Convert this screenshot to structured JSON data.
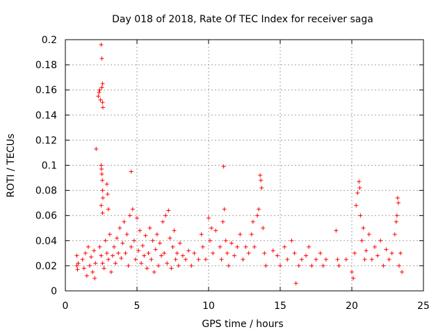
{
  "chart_data": {
    "type": "scatter",
    "title": "Day 018 of 2018, Rate Of TEC Index for receiver saga",
    "xlabel": "GPS time / hours",
    "ylabel": "ROTI / TECUs",
    "xlim": [
      0,
      25
    ],
    "ylim": [
      0,
      0.2
    ],
    "x_ticks": [
      "0",
      "5",
      "10",
      "15",
      "20",
      "25"
    ],
    "y_ticks": [
      "0",
      "0.02",
      "0.04",
      "0.06",
      "0.08",
      "0.1",
      "0.12",
      "0.14",
      "0.16",
      "0.18",
      "0.2"
    ],
    "grid": true,
    "marker": "+",
    "color": "#ff0000",
    "series": [
      {
        "name": "ROTI",
        "points": [
          [
            0.8,
            0.028
          ],
          [
            0.8,
            0.02
          ],
          [
            0.85,
            0.017
          ],
          [
            0.9,
            0.022
          ],
          [
            1.2,
            0.025
          ],
          [
            1.3,
            0.018
          ],
          [
            1.4,
            0.03
          ],
          [
            1.5,
            0.012
          ],
          [
            1.6,
            0.035
          ],
          [
            1.7,
            0.02
          ],
          [
            1.8,
            0.027
          ],
          [
            1.9,
            0.015
          ],
          [
            2.0,
            0.032
          ],
          [
            2.05,
            0.01
          ],
          [
            2.1,
            0.022
          ],
          [
            2.15,
            0.113
          ],
          [
            2.3,
            0.155
          ],
          [
            2.35,
            0.158
          ],
          [
            2.4,
            0.16
          ],
          [
            2.45,
            0.152
          ],
          [
            2.5,
            0.196
          ],
          [
            2.55,
            0.185
          ],
          [
            2.6,
            0.165
          ],
          [
            2.6,
            0.15
          ],
          [
            2.62,
            0.146
          ],
          [
            2.55,
            0.162
          ],
          [
            2.5,
            0.1
          ],
          [
            2.52,
            0.097
          ],
          [
            2.55,
            0.093
          ],
          [
            2.58,
            0.088
          ],
          [
            2.6,
            0.08
          ],
          [
            2.62,
            0.074
          ],
          [
            2.5,
            0.068
          ],
          [
            2.6,
            0.062
          ],
          [
            2.9,
            0.085
          ],
          [
            2.95,
            0.077
          ],
          [
            3.0,
            0.065
          ],
          [
            2.4,
            0.035
          ],
          [
            2.5,
            0.028
          ],
          [
            2.6,
            0.022
          ],
          [
            2.7,
            0.018
          ],
          [
            2.8,
            0.04
          ],
          [
            2.9,
            0.03
          ],
          [
            3.0,
            0.025
          ],
          [
            3.1,
            0.045
          ],
          [
            3.2,
            0.015
          ],
          [
            3.3,
            0.028
          ],
          [
            3.4,
            0.035
          ],
          [
            3.5,
            0.022
          ],
          [
            3.6,
            0.042
          ],
          [
            3.7,
            0.03
          ],
          [
            3.8,
            0.05
          ],
          [
            3.9,
            0.026
          ],
          [
            4.0,
            0.038
          ],
          [
            4.1,
            0.055
          ],
          [
            4.2,
            0.03
          ],
          [
            4.3,
            0.045
          ],
          [
            4.4,
            0.02
          ],
          [
            4.5,
            0.06
          ],
          [
            4.6,
            0.035
          ],
          [
            4.6,
            0.095
          ],
          [
            4.7,
            0.065
          ],
          [
            4.8,
            0.04
          ],
          [
            4.9,
            0.025
          ],
          [
            5.0,
            0.058
          ],
          [
            5.1,
            0.032
          ],
          [
            5.2,
            0.048
          ],
          [
            5.3,
            0.022
          ],
          [
            5.4,
            0.036
          ],
          [
            5.5,
            0.028
          ],
          [
            5.6,
            0.044
          ],
          [
            5.7,
            0.018
          ],
          [
            5.8,
            0.03
          ],
          [
            5.9,
            0.05
          ],
          [
            6.0,
            0.025
          ],
          [
            6.1,
            0.04
          ],
          [
            6.2,
            0.015
          ],
          [
            6.3,
            0.033
          ],
          [
            6.4,
            0.045
          ],
          [
            6.5,
            0.02
          ],
          [
            6.6,
            0.038
          ],
          [
            6.7,
            0.028
          ],
          [
            6.8,
            0.055
          ],
          [
            6.9,
            0.03
          ],
          [
            7.0,
            0.06
          ],
          [
            7.1,
            0.022
          ],
          [
            7.2,
            0.064
          ],
          [
            7.3,
            0.042
          ],
          [
            7.4,
            0.018
          ],
          [
            7.5,
            0.035
          ],
          [
            7.6,
            0.048
          ],
          [
            7.7,
            0.025
          ],
          [
            7.8,
            0.03
          ],
          [
            7.9,
            0.02
          ],
          [
            8.0,
            0.038
          ],
          [
            8.2,
            0.028
          ],
          [
            8.4,
            0.025
          ],
          [
            8.6,
            0.032
          ],
          [
            8.8,
            0.02
          ],
          [
            9.0,
            0.03
          ],
          [
            9.3,
            0.025
          ],
          [
            9.5,
            0.045
          ],
          [
            9.6,
            0.035
          ],
          [
            9.8,
            0.025
          ],
          [
            10.0,
            0.058
          ],
          [
            10.1,
            0.04
          ],
          [
            10.2,
            0.05
          ],
          [
            10.3,
            0.03
          ],
          [
            10.5,
            0.048
          ],
          [
            10.8,
            0.035
          ],
          [
            10.9,
            0.025
          ],
          [
            11.0,
            0.055
          ],
          [
            11.05,
            0.099
          ],
          [
            11.1,
            0.065
          ],
          [
            11.2,
            0.04
          ],
          [
            11.3,
            0.03
          ],
          [
            11.4,
            0.02
          ],
          [
            11.6,
            0.038
          ],
          [
            11.8,
            0.028
          ],
          [
            12.0,
            0.035
          ],
          [
            12.2,
            0.045
          ],
          [
            12.4,
            0.025
          ],
          [
            12.6,
            0.035
          ],
          [
            12.8,
            0.03
          ],
          [
            13.0,
            0.045
          ],
          [
            13.1,
            0.055
          ],
          [
            13.2,
            0.035
          ],
          [
            13.4,
            0.06
          ],
          [
            13.5,
            0.065
          ],
          [
            13.6,
            0.092
          ],
          [
            13.65,
            0.088
          ],
          [
            13.7,
            0.082
          ],
          [
            13.8,
            0.05
          ],
          [
            13.9,
            0.03
          ],
          [
            14.0,
            0.02
          ],
          [
            14.5,
            0.032
          ],
          [
            14.8,
            0.028
          ],
          [
            15.0,
            0.02
          ],
          [
            15.3,
            0.035
          ],
          [
            15.5,
            0.025
          ],
          [
            15.8,
            0.04
          ],
          [
            16.0,
            0.03
          ],
          [
            16.1,
            0.006
          ],
          [
            16.3,
            0.02
          ],
          [
            16.5,
            0.025
          ],
          [
            16.8,
            0.028
          ],
          [
            17.0,
            0.035
          ],
          [
            17.2,
            0.02
          ],
          [
            17.5,
            0.025
          ],
          [
            17.8,
            0.03
          ],
          [
            18.0,
            0.02
          ],
          [
            18.2,
            0.025
          ],
          [
            18.9,
            0.048
          ],
          [
            19.0,
            0.025
          ],
          [
            19.1,
            0.02
          ],
          [
            19.6,
            0.025
          ],
          [
            20.0,
            0.015
          ],
          [
            20.1,
            0.01
          ],
          [
            20.2,
            0.03
          ],
          [
            20.3,
            0.068
          ],
          [
            20.4,
            0.078
          ],
          [
            20.5,
            0.087
          ],
          [
            20.55,
            0.082
          ],
          [
            20.6,
            0.06
          ],
          [
            20.7,
            0.04
          ],
          [
            20.8,
            0.05
          ],
          [
            20.9,
            0.025
          ],
          [
            21.0,
            0.032
          ],
          [
            21.2,
            0.045
          ],
          [
            21.4,
            0.025
          ],
          [
            21.6,
            0.035
          ],
          [
            21.8,
            0.028
          ],
          [
            22.0,
            0.04
          ],
          [
            22.2,
            0.02
          ],
          [
            22.4,
            0.033
          ],
          [
            22.6,
            0.025
          ],
          [
            22.8,
            0.03
          ],
          [
            23.0,
            0.045
          ],
          [
            23.1,
            0.055
          ],
          [
            23.15,
            0.06
          ],
          [
            23.2,
            0.074
          ],
          [
            23.25,
            0.07
          ],
          [
            23.3,
            0.02
          ],
          [
            23.4,
            0.03
          ],
          [
            23.5,
            0.015
          ]
        ]
      }
    ]
  }
}
